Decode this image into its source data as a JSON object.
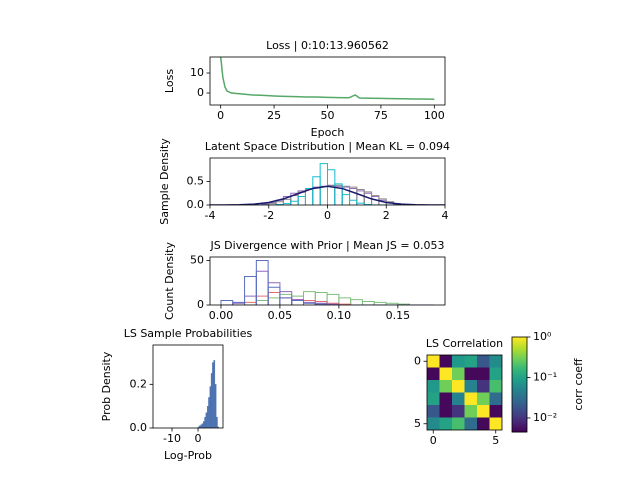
{
  "chart_data": [
    {
      "type": "line",
      "title": "Loss | 0:10:13.960562",
      "xlabel": "Epoch",
      "ylabel": "Loss",
      "x": [
        0,
        1,
        2,
        3,
        5,
        10,
        15,
        20,
        25,
        30,
        35,
        40,
        45,
        50,
        55,
        60,
        63,
        65,
        70,
        75,
        80,
        85,
        90,
        95,
        100
      ],
      "values": [
        18,
        8,
        3,
        1,
        0,
        -0.5,
        -1,
        -1.2,
        -1.5,
        -1.7,
        -1.8,
        -2,
        -2,
        -2.2,
        -2.3,
        -2.4,
        -1,
        -2.5,
        -2.6,
        -2.7,
        -2.8,
        -2.9,
        -3,
        -3,
        -3.1
      ],
      "color": "#55a868",
      "xlim": [
        -5,
        105
      ],
      "xticks": [
        0,
        25,
        50,
        75,
        100
      ],
      "ylim": [
        -6,
        18
      ],
      "yticks": [
        0,
        10
      ]
    },
    {
      "type": "histogram",
      "title": "Latent Space Distribution | Mean KL = 0.094",
      "ylabel": "Sample Density",
      "xlim": [
        -4,
        4
      ],
      "xticks": [
        -4,
        -2,
        0,
        2,
        4
      ],
      "ylim": [
        0,
        1.0
      ],
      "yticks": [
        {
          "value": 0,
          "label": "0.0"
        },
        {
          "value": 0.5,
          "label": "0.5"
        }
      ],
      "series": [
        {
          "color": "#9467bd",
          "bins": [
            -2.5,
            -2.25,
            -2,
            -1.75,
            -1.5,
            -1.25,
            -1,
            -0.75,
            -0.5,
            -0.25,
            0,
            0.25,
            0.5,
            0.75,
            1,
            1.25,
            1.5,
            1.75,
            2,
            2.25,
            2.5
          ],
          "values": [
            0,
            0.02,
            0.05,
            0.1,
            0.18,
            0.25,
            0.3,
            0.35,
            0.38,
            0.4,
            0.42,
            0.4,
            0.38,
            0.35,
            0.3,
            0.25,
            0.18,
            0.1,
            0.05,
            0.02
          ]
        },
        {
          "color": "#8c8c8c",
          "bins": [
            -2.5,
            -2.25,
            -2,
            -1.75,
            -1.5,
            -1.25,
            -1,
            -0.75,
            -0.5,
            -0.25,
            0,
            0.25,
            0.5,
            0.75,
            1,
            1.25,
            1.5,
            1.75,
            2,
            2.25,
            2.5
          ],
          "values": [
            0,
            0,
            0.03,
            0.07,
            0.12,
            0.2,
            0.27,
            0.33,
            0.36,
            0.39,
            0.41,
            0.42,
            0.4,
            0.38,
            0.33,
            0.28,
            0.2,
            0.13,
            0.07,
            0.03
          ]
        },
        {
          "color": "#17becf",
          "bins": [
            -2.5,
            -2.25,
            -2,
            -1.75,
            -1.5,
            -1.25,
            -1,
            -0.75,
            -0.5,
            -0.25,
            0,
            0.25,
            0.5,
            0.75,
            1,
            1.25,
            1.5,
            1.75,
            2,
            2.25,
            2.5
          ],
          "values": [
            0,
            0,
            0,
            0.01,
            0.03,
            0.08,
            0.18,
            0.35,
            0.6,
            0.88,
            0.75,
            0.45,
            0.22,
            0.1,
            0.04,
            0.01,
            0,
            0,
            0,
            0
          ]
        },
        {
          "color": "#1a1a6e",
          "x": [
            -4,
            -3.5,
            -3,
            -2.5,
            -2,
            -1.5,
            -1,
            -0.5,
            0,
            0.5,
            1,
            1.5,
            2,
            2.5,
            3,
            3.5,
            4
          ],
          "values": [
            0.0001,
            0.0009,
            0.0044,
            0.0175,
            0.054,
            0.1295,
            0.242,
            0.3521,
            0.3989,
            0.3521,
            0.242,
            0.1295,
            0.054,
            0.0175,
            0.0044,
            0.0009,
            0.0001
          ]
        }
      ]
    },
    {
      "type": "histogram",
      "title": "JS Divergence with Prior | Mean JS = 0.053",
      "ylabel": "Count Density",
      "xlim": [
        -0.0093,
        0.19
      ],
      "xticks": [
        {
          "value": 0,
          "label": "0.00"
        },
        {
          "value": 0.05,
          "label": "0.05"
        },
        {
          "value": 0.1,
          "label": "0.10"
        },
        {
          "value": 0.15,
          "label": "0.15"
        }
      ],
      "ylim": [
        0,
        54
      ],
      "yticks": [
        0,
        50
      ],
      "series": [
        {
          "color": "#7fbf7f",
          "bins": [
            0,
            0.01,
            0.02,
            0.03,
            0.04,
            0.05,
            0.06,
            0.07,
            0.08,
            0.09,
            0.1,
            0.11,
            0.12,
            0.13,
            0.14,
            0.15,
            0.16,
            0.17,
            0.18
          ],
          "values": [
            0,
            0,
            0,
            5,
            8,
            12,
            10,
            15,
            14,
            12,
            8,
            6,
            4,
            3,
            2,
            1,
            0,
            0
          ]
        },
        {
          "color": "#e07070",
          "bins": [
            0,
            0.01,
            0.02,
            0.03,
            0.04,
            0.05,
            0.06,
            0.07,
            0.08,
            0.09,
            0.1,
            0.11,
            0.12,
            0.13,
            0.14,
            0.15,
            0.16,
            0.17,
            0.18
          ],
          "values": [
            0,
            0,
            3,
            10,
            14,
            8,
            6,
            5,
            4,
            2,
            1,
            0,
            0,
            0,
            0,
            0,
            0,
            0
          ]
        },
        {
          "color": "#9467bd",
          "bins": [
            0,
            0.01,
            0.02,
            0.03,
            0.04,
            0.05,
            0.06,
            0.07,
            0.08,
            0.09,
            0.1,
            0.11,
            0.12,
            0.13,
            0.14,
            0.15,
            0.16,
            0.17,
            0.18
          ],
          "values": [
            0,
            2,
            10,
            38,
            25,
            15,
            6,
            3,
            2,
            1,
            0,
            0,
            0,
            0,
            0,
            0,
            0,
            0
          ]
        },
        {
          "color": "#5a6fc0",
          "bins": [
            0,
            0.01,
            0.02,
            0.03,
            0.04,
            0.05,
            0.06,
            0.07,
            0.08,
            0.09,
            0.1,
            0.11,
            0.12,
            0.13,
            0.14,
            0.15,
            0.16,
            0.17,
            0.18
          ],
          "values": [
            5,
            3,
            32,
            50,
            20,
            8,
            5,
            2,
            1,
            0,
            0,
            0,
            0,
            0,
            0,
            0,
            0,
            0
          ]
        }
      ]
    },
    {
      "type": "histogram",
      "title": "LS Sample Probabilities",
      "xlabel": "Log-Prob",
      "ylabel": "Prob Density",
      "xlim": [
        -17.3,
        9.6
      ],
      "xticks": [
        -10,
        0
      ],
      "ylim": [
        0,
        0.38
      ],
      "yticks": [
        {
          "value": 0,
          "label": "0.0"
        },
        {
          "value": 0.2,
          "label": "0.2"
        }
      ],
      "filled": true,
      "series": [
        {
          "color": "#4c72b0",
          "bins": [
            -2,
            -1.5,
            -1,
            -0.5,
            0,
            0.5,
            1,
            1.5,
            2,
            2.5,
            3,
            3.5,
            4,
            4.5,
            5,
            5.5,
            6,
            6.5,
            7,
            7.5,
            8
          ],
          "values": [
            0,
            0,
            0,
            0,
            0.005,
            0.01,
            0.015,
            0.02,
            0.03,
            0.05,
            0.07,
            0.1,
            0.14,
            0.19,
            0.25,
            0.3,
            0.31,
            0.2,
            0.05,
            0.005
          ]
        }
      ]
    },
    {
      "type": "heatmap",
      "title": "LS Correlation",
      "zlabel": "corr coeff",
      "xlim": [
        -0.5,
        5.5
      ],
      "xticks": [
        0,
        5
      ],
      "ylim": [
        5.5,
        -0.5
      ],
      "yticks": [
        0,
        5
      ],
      "zscale": "log",
      "zlim": [
        0.0045,
        1
      ],
      "zticks": [
        {
          "value": 1,
          "label": "10⁰"
        },
        {
          "value": 0.1,
          "label": "10⁻¹"
        },
        {
          "value": 0.01,
          "label": "10⁻²"
        }
      ],
      "values": [
        [
          1,
          0.005,
          0.08,
          0.1,
          0.02,
          0.06
        ],
        [
          0.005,
          1,
          0.3,
          0.005,
          0.005,
          0.1
        ],
        [
          0.08,
          0.3,
          1,
          0.05,
          0.01,
          0.2
        ],
        [
          0.1,
          0.005,
          0.05,
          1,
          0.3,
          0.03
        ],
        [
          0.02,
          0.005,
          0.01,
          0.3,
          1,
          0.005
        ],
        [
          0.06,
          0.1,
          0.2,
          0.03,
          0.005,
          1
        ]
      ]
    }
  ]
}
